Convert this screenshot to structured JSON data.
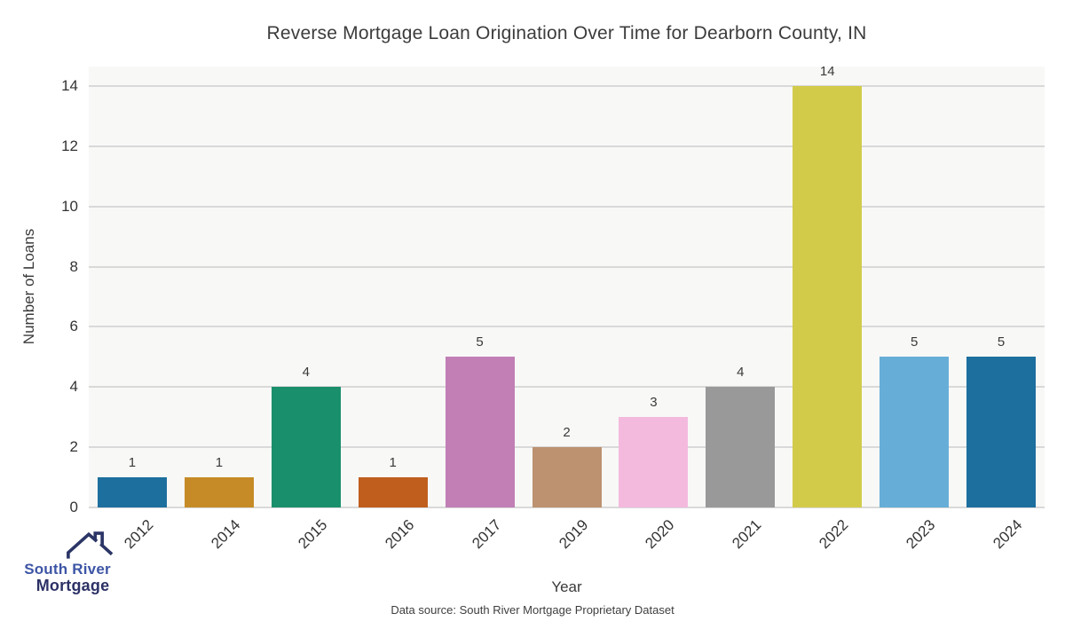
{
  "chart_data": {
    "type": "bar",
    "title": "Reverse Mortgage Loan Origination Over Time for Dearborn County, IN",
    "xlabel": "Year",
    "ylabel": "Number of Loans",
    "categories": [
      "2012",
      "2014",
      "2015",
      "2016",
      "2017",
      "2019",
      "2020",
      "2021",
      "2022",
      "2023",
      "2024"
    ],
    "values": [
      1,
      1,
      4,
      1,
      5,
      2,
      3,
      4,
      14,
      5,
      5
    ],
    "bar_colors": [
      "#1d6f9e",
      "#c68b27",
      "#1a8f6b",
      "#c05e1e",
      "#c17fb5",
      "#bd9270",
      "#f4bade",
      "#999999",
      "#d2cb4a",
      "#66aed8",
      "#1d6f9e"
    ],
    "yticks": [
      0,
      2,
      4,
      6,
      8,
      10,
      12,
      14
    ],
    "ylim": [
      0,
      14.65
    ],
    "grid": "horizontal",
    "legend": "none",
    "plot_background": "#f8f8f7",
    "gridline_color": "#d9d9d9"
  },
  "footer": {
    "source": "Data source: South River Mortgage Proprietary Dataset"
  },
  "logo": {
    "line1": "South River",
    "line2": "Mortgage",
    "line1_color": "#3d55a5",
    "line2_color": "#2c3166",
    "roof_color": "#2b3566"
  }
}
